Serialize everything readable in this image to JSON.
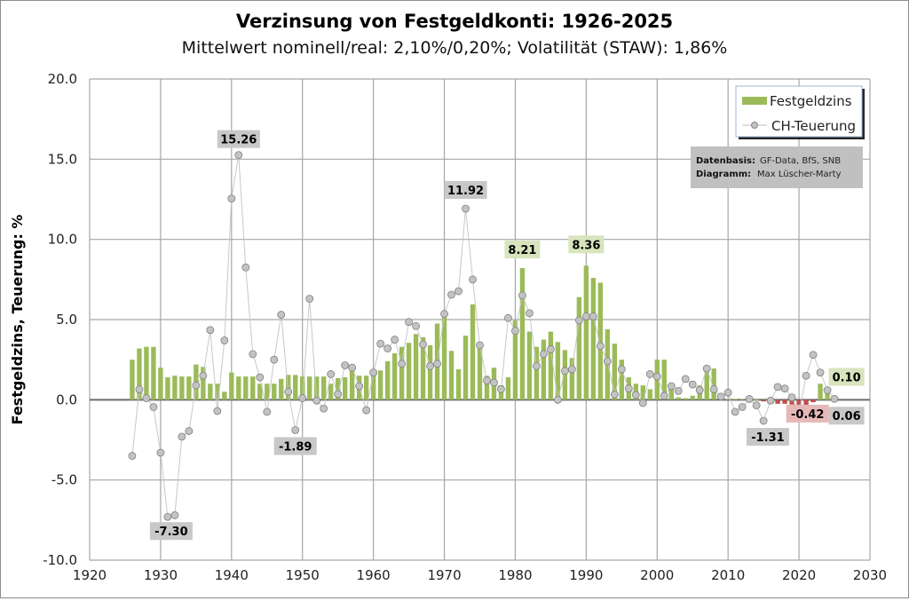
{
  "chart_data": {
    "type": "bar",
    "title": "Verzinsung von Festgeldkonti: 1926-2025",
    "subtitle": "Mittelwert nominell/real:  2,10%/0,20%;  Volatilität (STAW): 1,86%",
    "xlabel": "",
    "ylabel": "Festgeldzins, Teuerung: %",
    "xlim": [
      1920,
      2030
    ],
    "ylim": [
      -10,
      20
    ],
    "x_ticks": [
      "1920",
      "1930",
      "1940",
      "1950",
      "1960",
      "1970",
      "1980",
      "1990",
      "2000",
      "2010",
      "2020",
      "2030"
    ],
    "y_ticks": [
      "20.0",
      "15.0",
      "10.0",
      "5.0",
      "0.0",
      "-5.0",
      "-10.0"
    ],
    "grid": true,
    "legend_position": "top-right",
    "start_year": 1926,
    "series": [
      {
        "name": "Festgeldzins",
        "type": "bar",
        "color": "#9bbb59",
        "negative_color": "#c0504d",
        "values": [
          2.5,
          3.2,
          3.3,
          3.3,
          2.0,
          1.4,
          1.5,
          1.45,
          1.45,
          2.2,
          2.05,
          1.0,
          1.0,
          0.5,
          1.7,
          1.45,
          1.45,
          1.45,
          1.0,
          1.0,
          1.0,
          1.3,
          1.55,
          1.55,
          1.45,
          1.45,
          1.45,
          1.45,
          1.0,
          1.35,
          1.4,
          1.8,
          1.5,
          1.5,
          1.9,
          1.83,
          2.4,
          2.9,
          3.3,
          3.55,
          4.1,
          3.9,
          3.4,
          4.75,
          5.15,
          3.05,
          1.9,
          4.0,
          5.95,
          3.3,
          1.5,
          2.0,
          0.9,
          1.4,
          4.95,
          8.21,
          4.25,
          3.3,
          3.75,
          4.25,
          3.6,
          3.1,
          2.6,
          6.4,
          8.36,
          7.6,
          7.3,
          4.4,
          3.5,
          2.5,
          1.4,
          1.0,
          0.9,
          0.66,
          2.5,
          2.5,
          0.66,
          0.15,
          0.1,
          0.25,
          0.9,
          2.05,
          1.95,
          0.1,
          0.05,
          0.05,
          0.05,
          0.03,
          0.02,
          -0.1,
          -0.15,
          -0.25,
          -0.25,
          -0.3,
          -0.42,
          -0.35,
          -0.15,
          1.0,
          0.5,
          0.1
        ]
      },
      {
        "name": "CH-Teuerung",
        "type": "line",
        "color": "#bfbfbf",
        "values": [
          -3.5,
          0.65,
          0.1,
          -0.45,
          -3.3,
          -7.3,
          -7.2,
          -2.3,
          -1.95,
          0.9,
          1.5,
          4.35,
          -0.7,
          3.7,
          12.55,
          15.26,
          8.25,
          2.85,
          1.4,
          -0.75,
          2.5,
          5.3,
          0.5,
          -1.89,
          0.1,
          6.3,
          -0.05,
          -0.55,
          1.6,
          0.35,
          2.15,
          2.0,
          0.85,
          -0.65,
          1.7,
          3.5,
          3.2,
          3.75,
          2.25,
          4.85,
          4.6,
          3.45,
          2.1,
          2.25,
          5.35,
          6.55,
          6.77,
          11.92,
          7.5,
          3.4,
          1.2,
          1.07,
          0.66,
          5.1,
          4.3,
          6.5,
          5.4,
          2.1,
          2.85,
          3.15,
          0.0,
          1.8,
          1.9,
          4.95,
          5.2,
          5.2,
          3.35,
          2.4,
          0.33,
          1.9,
          0.7,
          0.3,
          -0.2,
          1.6,
          1.45,
          0.25,
          0.85,
          0.55,
          1.3,
          0.95,
          0.6,
          1.95,
          0.65,
          0.2,
          0.45,
          -0.75,
          -0.45,
          0.05,
          -0.35,
          -1.31,
          -0.05,
          0.8,
          0.7,
          0.15,
          -0.8,
          1.5,
          2.8,
          1.7,
          0.6,
          0.06
        ]
      }
    ],
    "annotations": [
      {
        "text": "15.26",
        "year": 1941,
        "value": 15.26,
        "style": "gray"
      },
      {
        "text": "-7.30",
        "year": 1931,
        "value": -7.3,
        "style": "gray"
      },
      {
        "text": "-1.89",
        "year": 1949,
        "value": -1.89,
        "style": "gray"
      },
      {
        "text": "11.92",
        "year": 1973,
        "value": 11.92,
        "style": "gray"
      },
      {
        "text": "8.21",
        "year": 1981,
        "value": 8.21,
        "style": "green"
      },
      {
        "text": "8.36",
        "year": 1990,
        "value": 8.36,
        "style": "green"
      },
      {
        "text": "-1.31",
        "year": 2015,
        "value": -1.31,
        "style": "gray"
      },
      {
        "text": "-0.42",
        "year": 2020,
        "value": -0.42,
        "style": "red"
      },
      {
        "text": "0.10",
        "year": 2025,
        "value": 0.1,
        "style": "green"
      },
      {
        "text": "0.06",
        "year": 2025,
        "value": 0.06,
        "style": "gray"
      }
    ],
    "note": {
      "line1_label": "Datenbasis:",
      "line1_value": "GF-Data, BfS, SNB",
      "line2_label": "Diagramm:",
      "line2_value": "Max Lüscher-Marty"
    },
    "annotation_colors": {
      "gray": "#c8c8c8",
      "green": "#d7e4bd",
      "red": "#e6b9b8"
    }
  }
}
